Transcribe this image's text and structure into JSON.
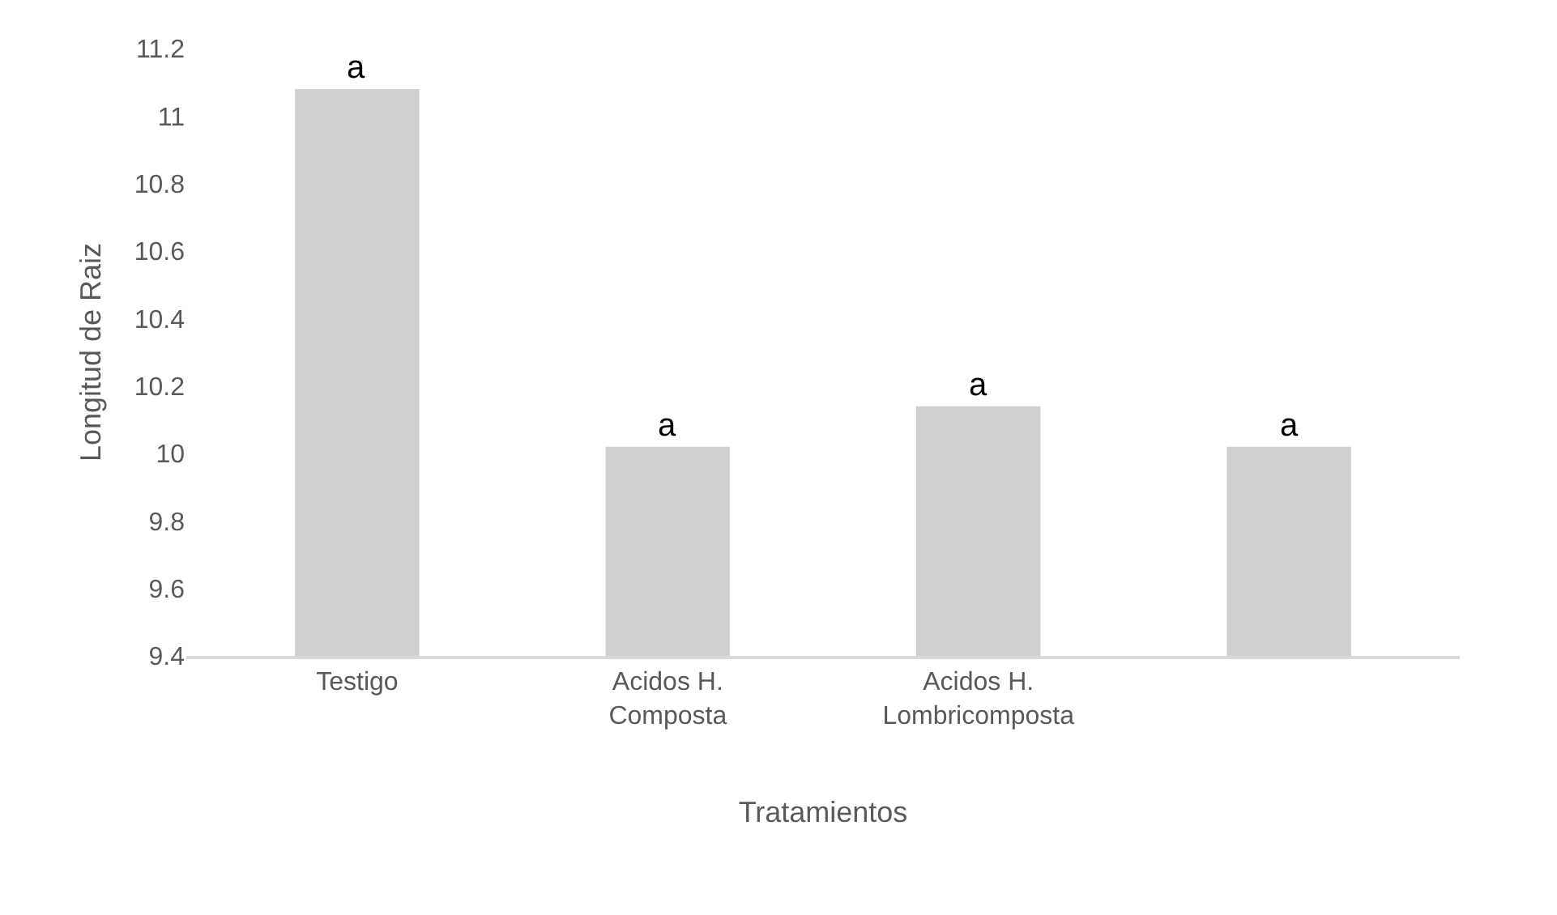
{
  "chart_data": {
    "type": "bar",
    "xlabel": "Tratamientos",
    "ylabel": "Longitud de Raiz",
    "categories": [
      "Testigo",
      "Acidos H.\nComposta",
      "Acidos H.\nLombricomposta",
      null
    ],
    "values": [
      11.08,
      10.02,
      10.14,
      10.02
    ],
    "color": "#d0cfd0",
    "ylim": [
      9.4,
      11.2
    ],
    "yticks": [
      9.4,
      9.6,
      9.8,
      10,
      10.2,
      10.4,
      10.6,
      10.8,
      11,
      11.2
    ],
    "annotations": [
      {
        "text": "a",
        "x": "Testigo",
        "y": 11.08
      },
      {
        "text": "a",
        "x": "Acidos H.\nComposta",
        "y": 10.02
      },
      {
        "text": "a",
        "x": "Acidos H.\nLombricomposta",
        "y": 10.14
      },
      {
        "text": "a",
        "y": 10.02
      }
    ]
  }
}
